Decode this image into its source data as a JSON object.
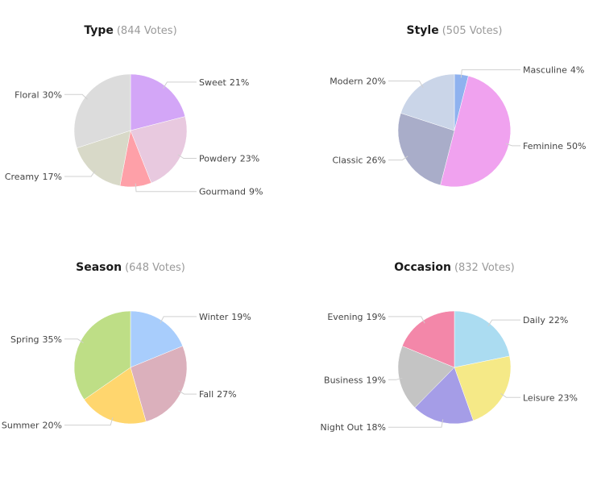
{
  "chart_data": [
    {
      "type": "pie",
      "title": "Type",
      "votes_text": "(844 Votes)",
      "slices": [
        {
          "label": "Sweet",
          "percent_text": "21%",
          "value": 21,
          "color": "#d3a6f7"
        },
        {
          "label": "Powdery",
          "percent_text": "23%",
          "value": 23,
          "color": "#e8c9df"
        },
        {
          "label": "Gourmand",
          "percent_text": "9%",
          "value": 9,
          "color": "#fea0a8"
        },
        {
          "label": "Creamy",
          "percent_text": "17%",
          "value": 17,
          "color": "#d8d9c8"
        },
        {
          "label": "Floral",
          "percent_text": "30%",
          "value": 30,
          "color": "#dcdcdc"
        }
      ]
    },
    {
      "type": "pie",
      "title": "Style",
      "votes_text": "(505 Votes)",
      "slices": [
        {
          "label": "Masculine",
          "percent_text": "4%",
          "value": 4,
          "color": "#8fb2ef"
        },
        {
          "label": "Feminine",
          "percent_text": "50%",
          "value": 50,
          "color": "#f0a2ef"
        },
        {
          "label": "Classic",
          "percent_text": "26%",
          "value": 26,
          "color": "#a9adc9"
        },
        {
          "label": "Modern",
          "percent_text": "20%",
          "value": 20,
          "color": "#cad5e8"
        }
      ]
    },
    {
      "type": "pie",
      "title": "Season",
      "votes_text": "(648 Votes)",
      "slices": [
        {
          "label": "Winter",
          "percent_text": "19%",
          "value": 19,
          "color": "#a8cdfc"
        },
        {
          "label": "Fall",
          "percent_text": "27%",
          "value": 27,
          "color": "#dbb0bc"
        },
        {
          "label": "Summer",
          "percent_text": "20%",
          "value": 20,
          "color": "#ffd66e"
        },
        {
          "label": "Spring",
          "percent_text": "35%",
          "value": 35,
          "color": "#bede86"
        }
      ]
    },
    {
      "type": "pie",
      "title": "Occasion",
      "votes_text": "(832 Votes)",
      "slices": [
        {
          "label": "Daily",
          "percent_text": "22%",
          "value": 22,
          "color": "#abdcf1"
        },
        {
          "label": "Leisure",
          "percent_text": "23%",
          "value": 23,
          "color": "#f5e987"
        },
        {
          "label": "Night Out",
          "percent_text": "18%",
          "value": 18,
          "color": "#a59de7"
        },
        {
          "label": "Business",
          "percent_text": "19%",
          "value": 19,
          "color": "#c4c4c4"
        },
        {
          "label": "Evening",
          "percent_text": "19%",
          "value": 19,
          "color": "#f387a9"
        }
      ]
    }
  ]
}
